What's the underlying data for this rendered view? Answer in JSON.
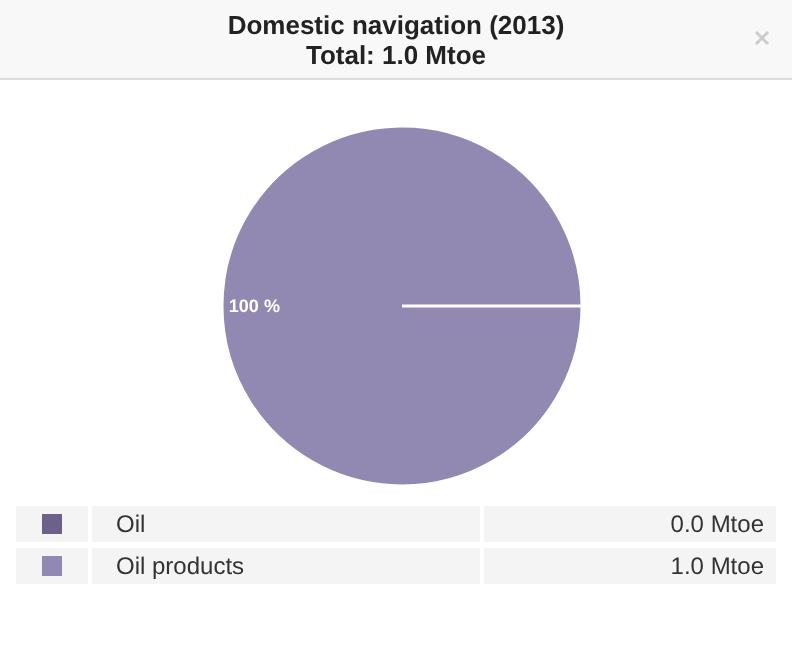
{
  "chart_data": {
    "type": "pie",
    "title": "Domestic navigation (2013)",
    "subtitle": "Total: 1.0 Mtoe",
    "categories": [
      "Oil",
      "Oil products"
    ],
    "values": [
      0.0,
      1.0
    ],
    "colors": [
      "#6b6189",
      "#9189b1"
    ],
    "value_labels": [
      "0.0 Mtoe",
      "1.0 Mtoe"
    ],
    "annotations": [
      {
        "text": "100 %",
        "x": "Oil products"
      }
    ],
    "legend": "bottom"
  }
}
